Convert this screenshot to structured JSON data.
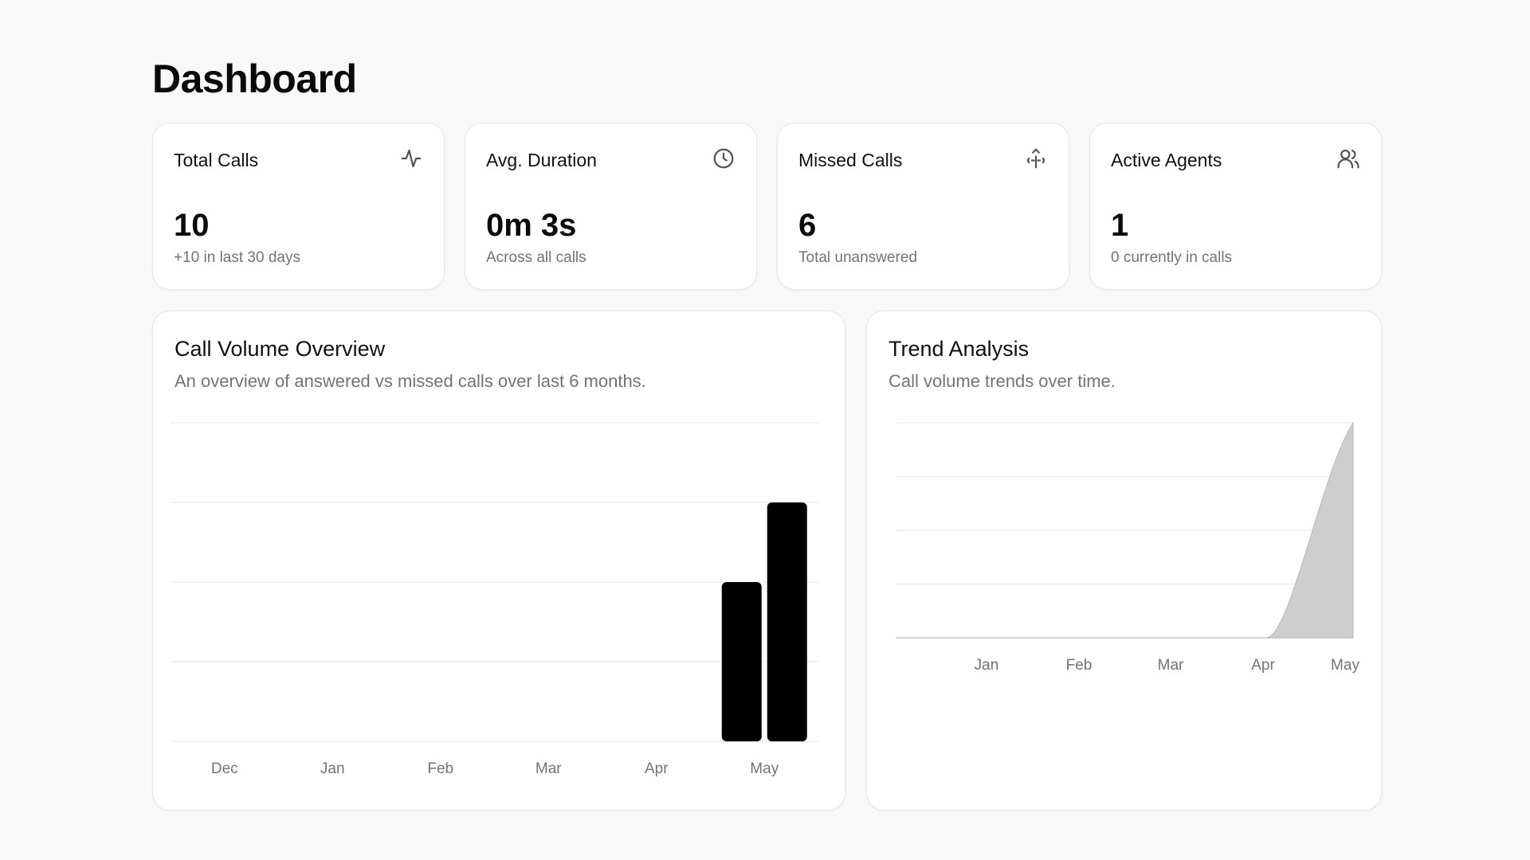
{
  "page": {
    "title": "Dashboard"
  },
  "stats": [
    {
      "label": "Total Calls",
      "value": "10",
      "sub": "+10 in last 30 days",
      "icon": "activity-icon"
    },
    {
      "label": "Avg. Duration",
      "value": "0m 3s",
      "sub": "Across all calls",
      "icon": "clock-icon"
    },
    {
      "label": "Missed Calls",
      "value": "6",
      "sub": "Total unanswered",
      "icon": "missed-call-icon"
    },
    {
      "label": "Active Agents",
      "value": "1",
      "sub": "0 currently in calls",
      "icon": "users-icon"
    }
  ],
  "call_volume": {
    "title": "Call Volume Overview",
    "description": "An overview of answered vs missed calls over last 6 months.",
    "chart_data": {
      "type": "bar",
      "categories": [
        "Dec",
        "Jan",
        "Feb",
        "Mar",
        "Apr",
        "May"
      ],
      "series": [
        {
          "values": [
            0,
            0,
            0,
            0,
            0,
            4
          ]
        },
        {
          "values": [
            0,
            0,
            0,
            0,
            0,
            6
          ]
        }
      ],
      "ylim": [
        0,
        8
      ],
      "grid": true,
      "bar_color": "#000000"
    }
  },
  "trend": {
    "title": "Trend Analysis",
    "description": "Call volume trends over time.",
    "chart_data": {
      "type": "area",
      "categories": [
        "Jan",
        "Feb",
        "Mar",
        "Apr",
        "May"
      ],
      "values": [
        0,
        0,
        0,
        0,
        10
      ],
      "ylim": [
        0,
        10
      ],
      "grid": true,
      "fill_color": "#cccccc",
      "stroke_color": "#b3b3b3"
    }
  }
}
